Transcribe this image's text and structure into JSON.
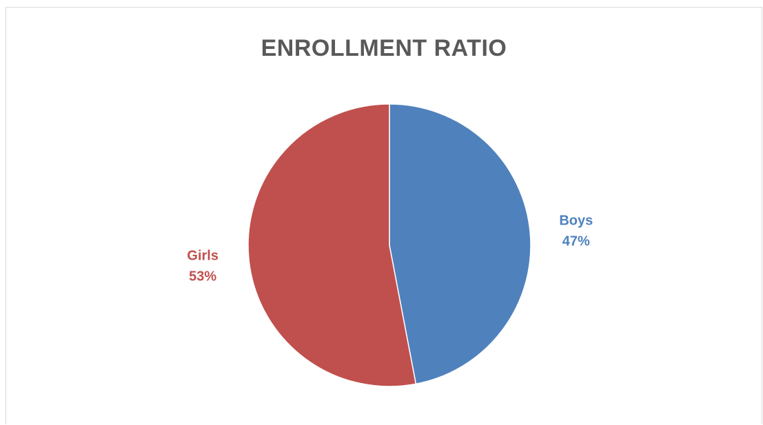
{
  "chart_data": {
    "type": "pie",
    "title": "ENROLLMENT RATIO",
    "categories": [
      "Boys",
      "Girls"
    ],
    "values": [
      47,
      53
    ],
    "labels": [
      "47%",
      "53%"
    ],
    "colors": [
      "#4f81bd",
      "#c0504d"
    ],
    "start_angle_deg": 0,
    "direction": "clockwise",
    "legend": "none"
  }
}
